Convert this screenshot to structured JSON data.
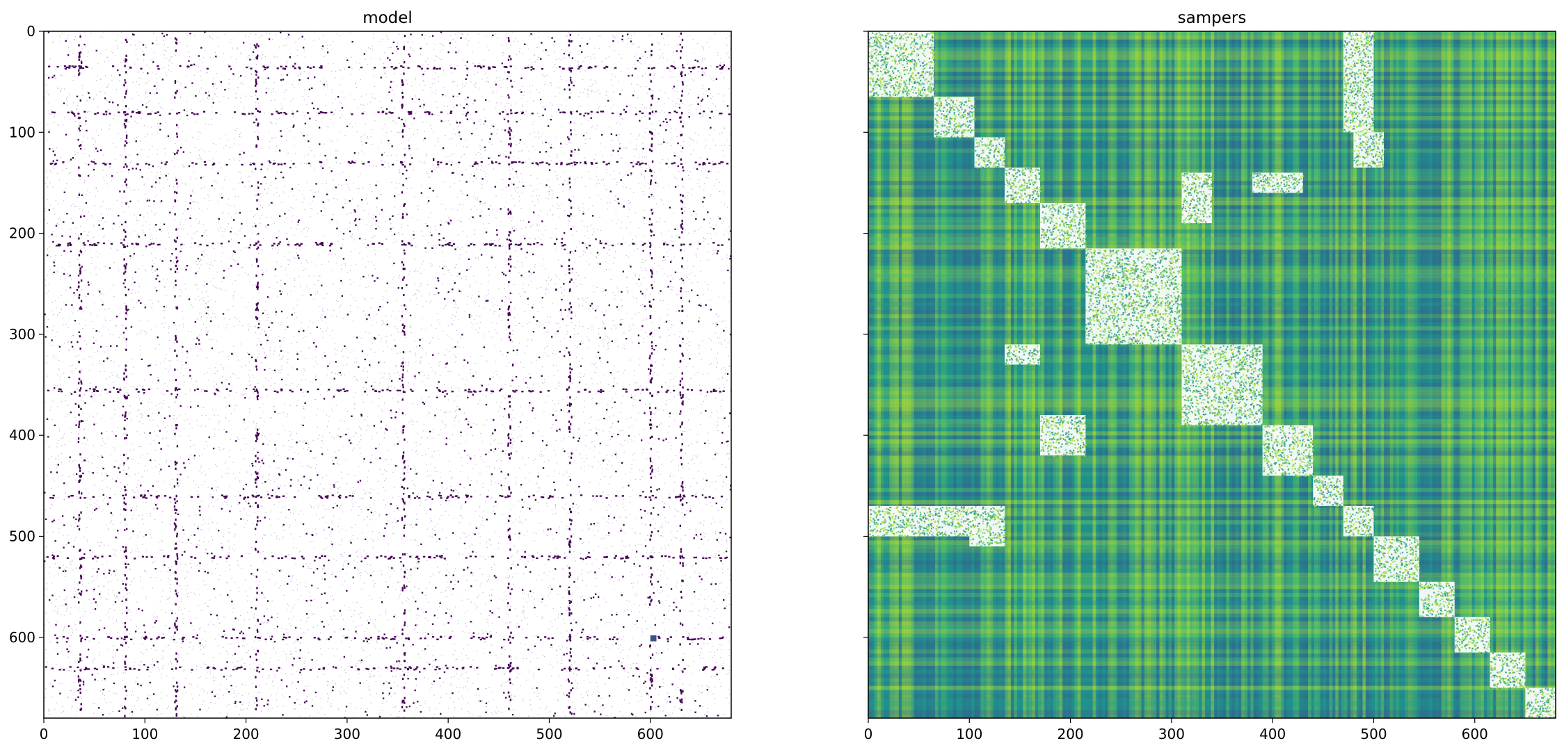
{
  "chart_data": [
    {
      "type": "heatmap",
      "title": "model",
      "xlabel": "",
      "ylabel": "",
      "xlim": [
        0,
        680
      ],
      "ylim": [
        680,
        0
      ],
      "xticks": [
        0,
        100,
        200,
        300,
        400,
        500,
        600
      ],
      "yticks": [
        0,
        100,
        200,
        300,
        400,
        500,
        600
      ],
      "colormap": "viridis",
      "style": "sparse",
      "hotspot_lines": [
        35,
        80,
        130,
        210,
        355,
        460,
        520,
        600,
        630
      ],
      "colors": {
        "dense": "#440154",
        "faint": "#8a72a8",
        "rare": "#3b528b"
      }
    },
    {
      "type": "heatmap",
      "title": "sampers",
      "xlabel": "",
      "ylabel": "",
      "xlim": [
        0,
        680
      ],
      "ylim": [
        680,
        0
      ],
      "xticks": [
        0,
        100,
        200,
        300,
        400,
        500,
        600
      ],
      "yticks": [
        0,
        100,
        200,
        300,
        400,
        500,
        600
      ],
      "colormap": "viridis",
      "style": "dense",
      "diagonal_blocks": [
        [
          0,
          65
        ],
        [
          65,
          105
        ],
        [
          105,
          135
        ],
        [
          135,
          170
        ],
        [
          170,
          215
        ],
        [
          215,
          310
        ],
        [
          310,
          390
        ],
        [
          390,
          440
        ],
        [
          440,
          470
        ],
        [
          470,
          500
        ],
        [
          500,
          545
        ],
        [
          545,
          580
        ],
        [
          580,
          615
        ],
        [
          615,
          650
        ],
        [
          650,
          680
        ]
      ],
      "offdiag_blocks": [
        [
          0,
          65,
          470,
          500
        ],
        [
          65,
          105,
          470,
          500
        ],
        [
          100,
          135,
          470,
          510
        ],
        [
          135,
          170,
          310,
          330
        ],
        [
          170,
          215,
          380,
          420
        ],
        [
          310,
          340,
          140,
          190
        ],
        [
          380,
          430,
          140,
          160
        ],
        [
          470,
          500,
          0,
          100
        ],
        [
          480,
          510,
          100,
          135
        ]
      ],
      "colors": {
        "low": "#31688e",
        "mid": "#21918c",
        "high": "#5ec962",
        "peak": "#aadc32"
      }
    }
  ]
}
